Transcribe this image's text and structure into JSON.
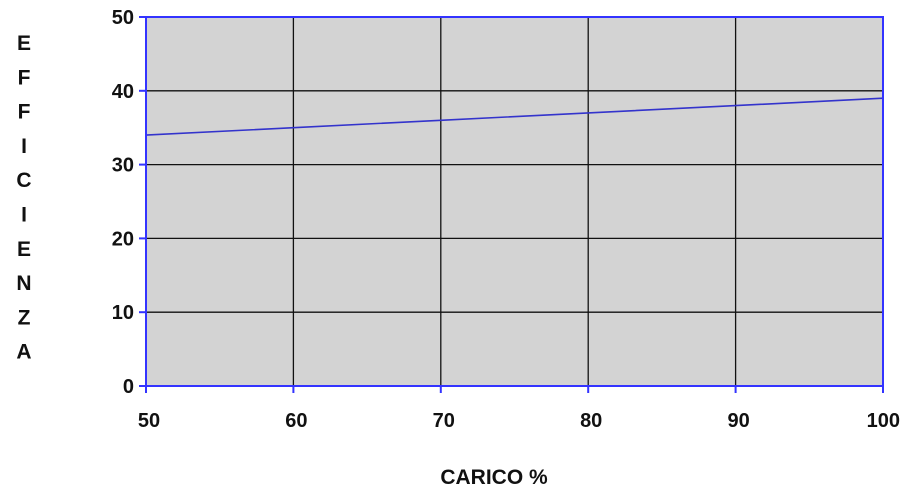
{
  "chart_data": {
    "type": "line",
    "title": "",
    "xlabel": "CARICO %",
    "ylabel": "EFFICIENZA",
    "xlim": [
      50,
      100
    ],
    "ylim": [
      0,
      50
    ],
    "x_ticks": [
      50,
      60,
      70,
      80,
      90,
      100
    ],
    "y_ticks": [
      0,
      10,
      20,
      30,
      40,
      50
    ],
    "grid": true,
    "legend": "none",
    "series": [
      {
        "x": [
          50,
          60,
          70,
          80,
          90,
          100
        ],
        "y": [
          34,
          35,
          36,
          37,
          38,
          39
        ]
      }
    ],
    "colors": {
      "plot_background": "#d3d3d3",
      "plot_border": "#3333ff",
      "grid": "#111111",
      "line": "#3333cc"
    }
  }
}
